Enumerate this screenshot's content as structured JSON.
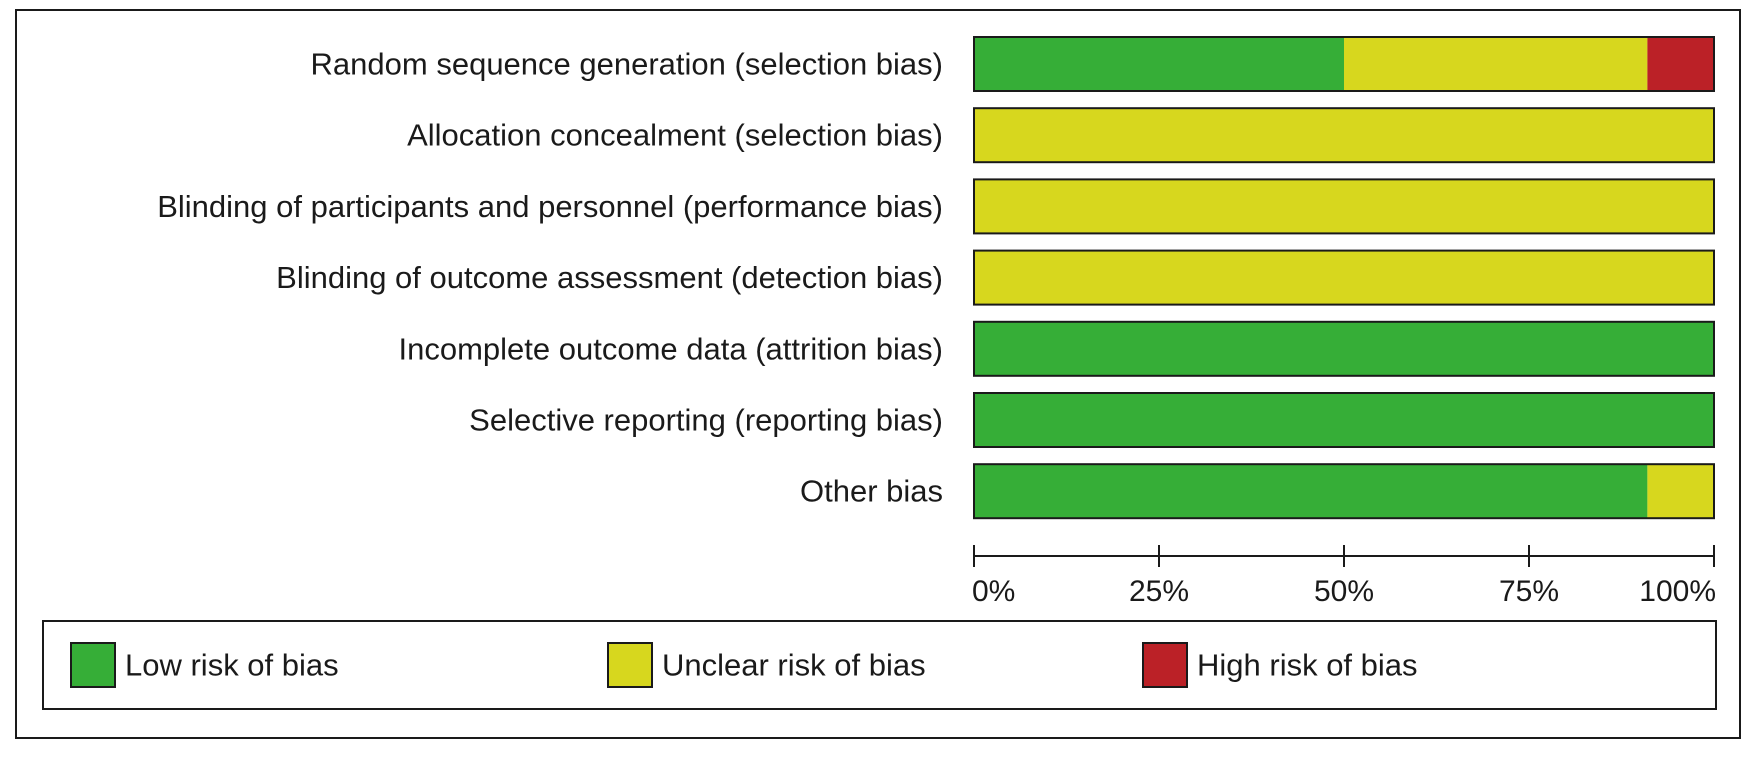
{
  "chart_data": {
    "type": "bar",
    "stacked": true,
    "orientation": "horizontal",
    "categories": [
      "Random sequence generation (selection bias)",
      "Allocation concealment (selection bias)",
      "Blinding of participants and personnel (performance bias)",
      "Blinding of outcome assessment (detection bias)",
      "Incomplete outcome data (attrition bias)",
      "Selective reporting (reporting bias)",
      "Other bias"
    ],
    "series": [
      {
        "name": "Low risk of bias",
        "color": "#36ae37",
        "values": [
          50,
          0,
          0,
          0,
          100,
          100,
          91
        ]
      },
      {
        "name": "Unclear risk of bias",
        "color": "#d7d71e",
        "values": [
          41,
          100,
          100,
          100,
          0,
          0,
          9
        ]
      },
      {
        "name": "High risk of bias",
        "color": "#bb2127",
        "values": [
          9,
          0,
          0,
          0,
          0,
          0,
          0
        ]
      }
    ],
    "xlim": [
      0,
      100
    ],
    "xticks": [
      "0%",
      "25%",
      "50%",
      "75%",
      "100%"
    ],
    "grid": false,
    "legend_position": "bottom"
  }
}
